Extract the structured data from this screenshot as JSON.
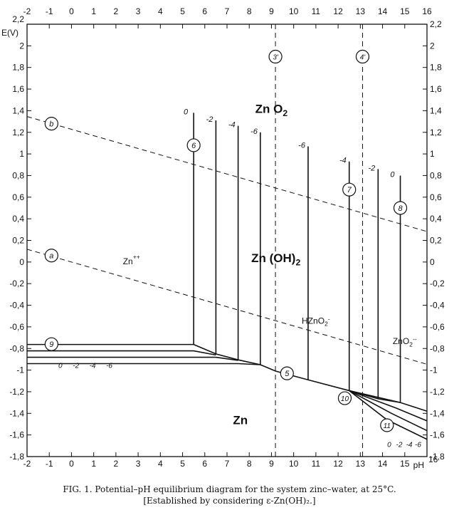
{
  "chart_data": {
    "type": "line",
    "axes": {
      "x_label": "pH",
      "y_label": "E(V)",
      "xlim": [
        -2,
        16
      ],
      "ylim": [
        -1.8,
        2.2
      ],
      "x_ticks": [
        "-2",
        "-1",
        "0",
        "1",
        "2",
        "3",
        "4",
        "5",
        "6",
        "7",
        "8",
        "9",
        "10",
        "11",
        "12",
        "13",
        "14",
        "15",
        "16"
      ],
      "y_ticks_left": [
        "-1,8",
        "-1,6",
        "-1,4",
        "-1,2",
        "-1",
        "-0,8",
        "-0,6",
        "-0,4",
        "-0,2",
        "0",
        "0,2",
        "0,4",
        "0,6",
        "0,8",
        "1",
        "1,2",
        "1,4",
        "1,6",
        "1,8",
        "2",
        "2,2"
      ],
      "y_ticks_right": [
        "-1,8",
        "-1,6",
        "-1,4",
        "-1,2",
        "-1",
        "-0,8",
        "-0,6",
        "-0,4",
        "-0,2",
        "0",
        "0,2",
        "0,4",
        "0,6",
        "0,8",
        "1",
        "1,2",
        "1,4",
        "1,6",
        "1,8",
        "2",
        "2,2"
      ]
    },
    "regions": [
      {
        "label": "Zn O",
        "sub": "2",
        "x": 9.0,
        "y": 1.38
      },
      {
        "label": "Zn (OH)",
        "sub": "2",
        "x": 9.2,
        "y": 0.0
      },
      {
        "label": "Zn",
        "x": 7.6,
        "y": -1.5
      }
    ],
    "species": [
      {
        "label": "Zn",
        "sup": "++",
        "x": 2.7,
        "y": -0.02
      },
      {
        "label": "HZnO",
        "sub": "2",
        "sup": "-",
        "x": 11.0,
        "y": -0.57
      },
      {
        "label": "ZnO",
        "sub": "2",
        "sup": "--",
        "x": 15.0,
        "y": -0.76
      }
    ],
    "water_lines": [
      {
        "name": "b",
        "points": [
          [
            -2,
            1.346
          ],
          [
            16,
            0.282
          ]
        ],
        "marker": [
          -0.9,
          1.28
        ]
      },
      {
        "name": "a",
        "points": [
          [
            -2,
            0.118
          ],
          [
            16,
            -0.946
          ]
        ],
        "marker": [
          -0.9,
          0.06
        ]
      }
    ],
    "dashed_verticals": [
      {
        "name": "3'",
        "x": 9.18,
        "marker_y": 1.9
      },
      {
        "name": "4'",
        "x": 13.1,
        "marker_y": 1.9
      }
    ],
    "boundary_lines": [
      {
        "points": [
          [
            -2,
            -0.763
          ],
          [
            5.5,
            -0.763
          ]
        ]
      },
      {
        "points": [
          [
            -2,
            -0.822
          ],
          [
            5.5,
            -0.822
          ],
          [
            6.5,
            -0.86
          ]
        ]
      },
      {
        "points": [
          [
            -2,
            -0.881
          ],
          [
            6.5,
            -0.881
          ],
          [
            7.5,
            -0.91
          ]
        ]
      },
      {
        "points": [
          [
            -2,
            -0.94
          ],
          [
            7.5,
            -0.94
          ],
          [
            8.5,
            -0.95
          ]
        ]
      },
      {
        "points": [
          [
            5.5,
            -0.763
          ],
          [
            6.5,
            -0.85
          ],
          [
            7.5,
            -0.905
          ],
          [
            8.5,
            -0.95
          ],
          [
            9.2,
            -1.01
          ],
          [
            10.65,
            -1.09
          ],
          [
            12.5,
            -1.19
          ],
          [
            13.8,
            -1.265
          ],
          [
            14.8,
            -1.3
          ]
        ]
      },
      {
        "points": [
          [
            12.5,
            -1.19
          ],
          [
            14.8,
            -1.3
          ],
          [
            16,
            -1.38
          ]
        ]
      },
      {
        "points": [
          [
            12.5,
            -1.19
          ],
          [
            14.6,
            -1.35
          ],
          [
            16,
            -1.47
          ]
        ]
      },
      {
        "points": [
          [
            12.5,
            -1.19
          ],
          [
            14.4,
            -1.4
          ],
          [
            16,
            -1.56
          ]
        ]
      },
      {
        "points": [
          [
            12.5,
            -1.19
          ],
          [
            14.2,
            -1.46
          ],
          [
            16,
            -1.64
          ]
        ]
      }
    ],
    "vertical_lines": [
      {
        "x": 5.5,
        "y_top": 1.38,
        "y_bottom": -0.763,
        "label": "0"
      },
      {
        "x": 6.5,
        "y_top": 1.31,
        "y_bottom": -0.85,
        "label": "-2"
      },
      {
        "x": 7.5,
        "y_top": 1.26,
        "y_bottom": -0.905,
        "label": "-4"
      },
      {
        "x": 8.5,
        "y_top": 1.2,
        "y_bottom": -0.95,
        "label": "-6"
      },
      {
        "x": 10.65,
        "y_top": 1.07,
        "y_bottom": -1.09,
        "label": "-6"
      },
      {
        "x": 12.5,
        "y_top": 0.93,
        "y_bottom": -1.19,
        "label": "-4"
      },
      {
        "x": 13.8,
        "y_top": 0.86,
        "y_bottom": -1.265,
        "label": "-2"
      },
      {
        "x": 14.8,
        "y_top": 0.8,
        "y_bottom": -1.3,
        "label": "0"
      }
    ],
    "circled_numbers": [
      {
        "label": "6",
        "x": 5.5,
        "y": 1.08
      },
      {
        "label": "7",
        "x": 12.5,
        "y": 0.67
      },
      {
        "label": "8",
        "x": 14.8,
        "y": 0.5
      },
      {
        "label": "9",
        "x": -0.9,
        "y": -0.76
      },
      {
        "label": "5",
        "x": 9.7,
        "y": -1.03
      },
      {
        "label": "10",
        "x": 12.3,
        "y": -1.26
      },
      {
        "label": "11",
        "x": 14.2,
        "y": -1.51
      }
    ],
    "group_labels": [
      {
        "labels": [
          "0",
          "-2",
          "-4",
          "-6"
        ],
        "x": [
          -0.5,
          0.2,
          0.95,
          1.7
        ],
        "y": -0.98
      },
      {
        "labels": [
          "0",
          "-2",
          "-4",
          "-6"
        ],
        "x": [
          14.3,
          14.75,
          15.2,
          15.6
        ],
        "y": -1.71
      }
    ]
  },
  "caption": {
    "line1": "FIG. 1. Potential–pH equilibrium diagram for the system zinc–water, at 25°C.",
    "line2": "[Established by considering ε-Zn(OH)₂.]"
  }
}
